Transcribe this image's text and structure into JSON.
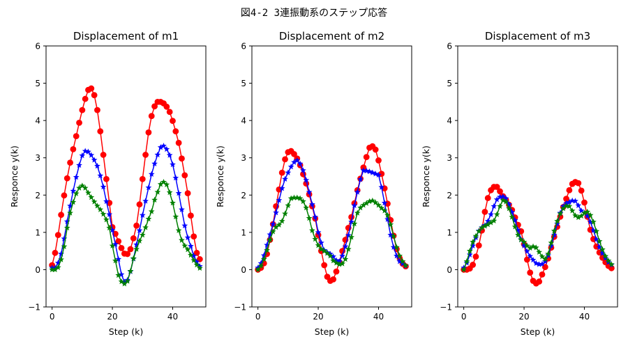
{
  "figure": {
    "suptitle": "図4-2 3連振動系のステップ応答"
  },
  "chart_data": [
    {
      "type": "line",
      "title": "Displacement of m1",
      "xlabel": "Step (k)",
      "ylabel": "Responce y(k)",
      "xlim": [
        -2,
        51
      ],
      "ylim": [
        -1,
        6
      ],
      "xticks": [
        0,
        20,
        40
      ],
      "yticks": [
        -1,
        0,
        1,
        2,
        3,
        4,
        5,
        6
      ],
      "grid": false,
      "series": [
        {
          "color": "#ff0000",
          "marker": "circle",
          "y": [
            0.12,
            0.45,
            0.93,
            1.47,
            1.99,
            2.45,
            2.87,
            3.23,
            3.58,
            3.94,
            4.28,
            4.58,
            4.82,
            4.86,
            4.68,
            4.28,
            3.71,
            3.08,
            2.43,
            1.79,
            1.14,
            0.96,
            0.76,
            0.58,
            0.43,
            0.42,
            0.55,
            0.84,
            1.18,
            1.75,
            2.43,
            3.08,
            3.68,
            4.12,
            4.38,
            4.5,
            4.5,
            4.46,
            4.37,
            4.23,
            3.99,
            3.71,
            3.4,
            2.98,
            2.53,
            2.05,
            1.45,
            0.89,
            0.45,
            0.28
          ]
        },
        {
          "color": "#0000ff",
          "marker": "star",
          "y": [
            0.05,
            0.05,
            0.18,
            0.42,
            0.83,
            1.29,
            1.71,
            2.11,
            2.48,
            2.8,
            3.06,
            3.18,
            3.16,
            3.07,
            2.94,
            2.78,
            2.52,
            2.22,
            1.83,
            1.48,
            1.06,
            0.68,
            0.28,
            -0.13,
            -0.33,
            -0.28,
            -0.05,
            0.29,
            0.67,
            1.05,
            1.46,
            1.84,
            2.2,
            2.56,
            2.84,
            3.08,
            3.28,
            3.32,
            3.23,
            3.07,
            2.82,
            2.46,
            2.05,
            1.61,
            1.18,
            0.86,
            0.63,
            0.37,
            0.21,
            0.09
          ]
        },
        {
          "color": "#008000",
          "marker": "star",
          "y": [
            0.0,
            0.0,
            0.06,
            0.27,
            0.62,
            1.12,
            1.52,
            1.81,
            2.04,
            2.19,
            2.25,
            2.19,
            2.06,
            1.94,
            1.82,
            1.71,
            1.61,
            1.49,
            1.34,
            1.12,
            0.64,
            0.24,
            -0.15,
            -0.32,
            -0.38,
            -0.31,
            -0.04,
            0.3,
            0.55,
            0.77,
            0.93,
            1.13,
            1.36,
            1.56,
            1.87,
            2.08,
            2.29,
            2.35,
            2.28,
            2.07,
            1.79,
            1.42,
            1.05,
            0.79,
            0.64,
            0.54,
            0.39,
            0.25,
            0.13,
            0.04
          ]
        }
      ]
    },
    {
      "type": "line",
      "title": "Displacement of m2",
      "xlabel": "Step (k)",
      "ylabel": "Responce y(k)",
      "xlim": [
        -2,
        51
      ],
      "ylim": [
        -1,
        6
      ],
      "xticks": [
        0,
        20,
        40
      ],
      "yticks": [
        -1,
        0,
        1,
        2,
        3,
        4,
        5,
        6
      ],
      "grid": false,
      "series": [
        {
          "color": "#ff0000",
          "marker": "circle",
          "y": [
            0.0,
            0.05,
            0.17,
            0.42,
            0.8,
            1.22,
            1.7,
            2.15,
            2.6,
            2.96,
            3.15,
            3.18,
            3.1,
            2.98,
            2.8,
            2.56,
            2.31,
            2.02,
            1.7,
            1.37,
            0.93,
            0.5,
            0.12,
            -0.19,
            -0.3,
            -0.26,
            -0.05,
            0.2,
            0.5,
            0.8,
            1.12,
            1.41,
            1.78,
            2.13,
            2.44,
            2.74,
            3.02,
            3.27,
            3.31,
            3.22,
            2.93,
            2.57,
            2.18,
            1.77,
            1.33,
            0.91,
            0.55,
            0.31,
            0.16,
            0.09
          ]
        },
        {
          "color": "#0000ff",
          "marker": "star",
          "y": [
            0.05,
            0.17,
            0.38,
            0.66,
            0.94,
            1.22,
            1.53,
            1.86,
            2.18,
            2.43,
            2.6,
            2.76,
            2.88,
            2.93,
            2.84,
            2.66,
            2.4,
            2.08,
            1.75,
            1.41,
            1.0,
            0.72,
            0.52,
            0.46,
            0.42,
            0.35,
            0.25,
            0.22,
            0.37,
            0.62,
            0.92,
            1.28,
            1.72,
            2.08,
            2.42,
            2.66,
            2.65,
            2.63,
            2.6,
            2.57,
            2.54,
            2.21,
            1.79,
            1.35,
            0.93,
            0.6,
            0.37,
            0.22,
            0.16,
            0.1
          ]
        },
        {
          "color": "#008000",
          "marker": "star",
          "y": [
            0.0,
            0.1,
            0.28,
            0.52,
            0.8,
            1.02,
            1.14,
            1.2,
            1.3,
            1.5,
            1.72,
            1.91,
            1.93,
            1.93,
            1.91,
            1.83,
            1.66,
            1.38,
            1.05,
            0.82,
            0.65,
            0.55,
            0.5,
            0.44,
            0.37,
            0.24,
            0.18,
            0.14,
            0.16,
            0.28,
            0.55,
            0.87,
            1.23,
            1.52,
            1.66,
            1.73,
            1.78,
            1.83,
            1.85,
            1.8,
            1.73,
            1.65,
            1.58,
            1.46,
            1.21,
            0.9,
            0.6,
            0.37,
            0.22,
            0.11
          ]
        }
      ]
    },
    {
      "type": "line",
      "title": "Displacement of m3",
      "xlabel": "Step (k)",
      "ylabel": "Responce y(k)",
      "xlim": [
        -2,
        51
      ],
      "ylim": [
        -1,
        6
      ],
      "xticks": [
        0,
        20,
        40
      ],
      "yticks": [
        -1,
        0,
        1,
        2,
        3,
        4,
        5,
        6
      ],
      "grid": false,
      "series": [
        {
          "color": "#ff0000",
          "marker": "circle",
          "y": [
            0.0,
            0.0,
            0.03,
            0.13,
            0.35,
            0.65,
            1.05,
            1.55,
            1.92,
            2.13,
            2.22,
            2.22,
            2.1,
            1.97,
            1.87,
            1.74,
            1.6,
            1.4,
            1.2,
            1.03,
            0.68,
            0.27,
            -0.08,
            -0.3,
            -0.37,
            -0.32,
            -0.13,
            0.07,
            0.3,
            0.59,
            0.88,
            1.15,
            1.42,
            1.68,
            1.9,
            2.13,
            2.3,
            2.35,
            2.32,
            2.12,
            1.8,
            1.42,
            1.07,
            0.82,
            0.62,
            0.46,
            0.32,
            0.2,
            0.1,
            0.04
          ]
        },
        {
          "color": "#0000ff",
          "marker": "star",
          "y": [
            0.05,
            0.18,
            0.4,
            0.64,
            0.86,
            1.04,
            1.13,
            1.19,
            1.3,
            1.48,
            1.7,
            1.88,
            1.95,
            1.96,
            1.91,
            1.75,
            1.54,
            1.32,
            1.06,
            0.81,
            0.64,
            0.49,
            0.36,
            0.26,
            0.17,
            0.14,
            0.15,
            0.22,
            0.38,
            0.64,
            0.93,
            1.23,
            1.52,
            1.7,
            1.78,
            1.81,
            1.85,
            1.84,
            1.72,
            1.58,
            1.52,
            1.44,
            1.28,
            1.05,
            0.81,
            0.6,
            0.44,
            0.31,
            0.2,
            0.13
          ]
        },
        {
          "color": "#008000",
          "marker": "star",
          "y": [
            0.0,
            0.22,
            0.5,
            0.74,
            0.9,
            1.03,
            1.12,
            1.17,
            1.21,
            1.26,
            1.31,
            1.48,
            1.7,
            1.86,
            1.82,
            1.64,
            1.41,
            1.15,
            0.93,
            0.8,
            0.74,
            0.64,
            0.58,
            0.62,
            0.59,
            0.47,
            0.35,
            0.28,
            0.42,
            0.72,
            1.04,
            1.3,
            1.5,
            1.64,
            1.71,
            1.7,
            1.58,
            1.45,
            1.4,
            1.44,
            1.52,
            1.55,
            1.46,
            1.28,
            1.03,
            0.76,
            0.54,
            0.36,
            0.24,
            0.14
          ]
        }
      ]
    }
  ]
}
